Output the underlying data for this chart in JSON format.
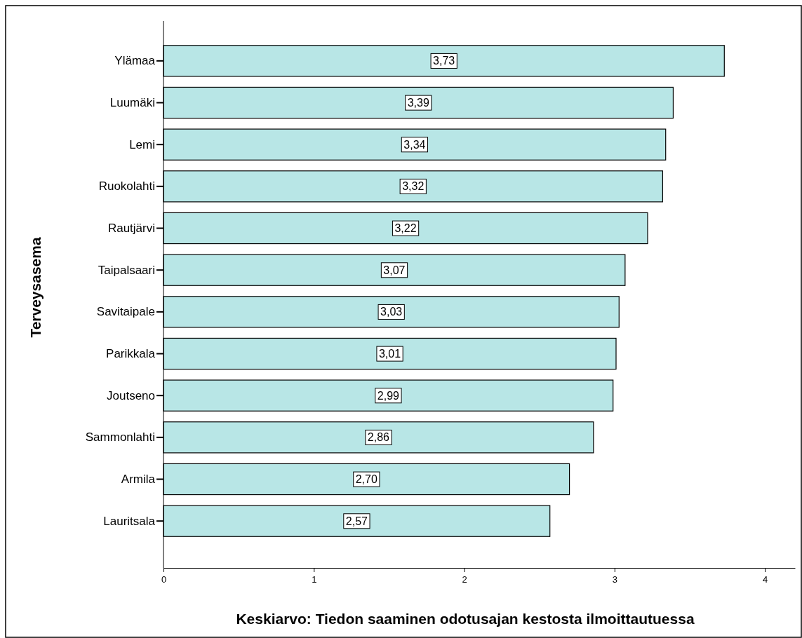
{
  "chart_data": {
    "type": "bar",
    "orientation": "horizontal",
    "xlabel": "Keskiarvo: Tiedon saaminen odotusajan kestosta ilmoittautuessa",
    "ylabel": "Terveysasema",
    "categories": [
      "Ylämaa",
      "Luumäki",
      "Lemi",
      "Ruokolahti",
      "Rautjärvi",
      "Taipalsaari",
      "Savitaipale",
      "Parikkala",
      "Joutseno",
      "Sammonlahti",
      "Armila",
      "Lauritsala"
    ],
    "values": [
      3.73,
      3.39,
      3.34,
      3.32,
      3.22,
      3.07,
      3.03,
      3.01,
      2.99,
      2.86,
      2.7,
      2.57
    ],
    "value_labels": [
      "3,73",
      "3,39",
      "3,34",
      "3,32",
      "3,22",
      "3,07",
      "3,03",
      "3,01",
      "2,99",
      "2,86",
      "2,70",
      "2,57"
    ],
    "color": "#b8e6e6",
    "xlim": [
      0,
      4.2
    ],
    "xticks": [
      0,
      1,
      2,
      3,
      4
    ],
    "grid": false
  }
}
